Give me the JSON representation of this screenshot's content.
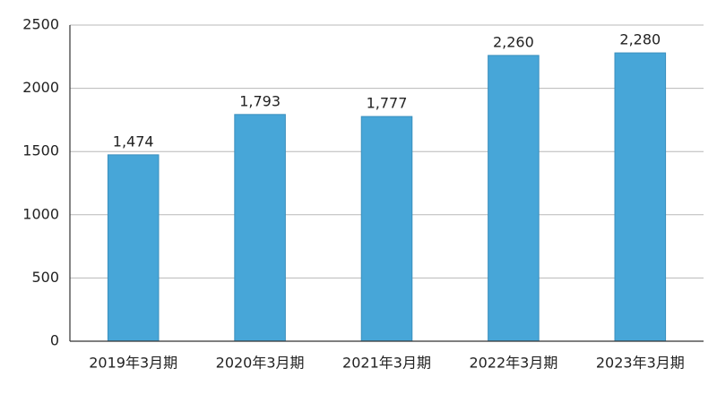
{
  "chart_data": {
    "type": "bar",
    "categories": [
      "2019年3月期",
      "2020年3月期",
      "2021年3月期",
      "2022年3月期",
      "2023年3月期"
    ],
    "values": [
      1474,
      1793,
      1777,
      2260,
      2280
    ],
    "value_labels": [
      "1,474",
      "1,793",
      "1,777",
      "2,260",
      "2,280"
    ],
    "color": "#47a6d8",
    "ylim": [
      0,
      2500
    ],
    "yticks": [
      0,
      500,
      1000,
      1500,
      2000,
      2500
    ],
    "grid": true
  }
}
